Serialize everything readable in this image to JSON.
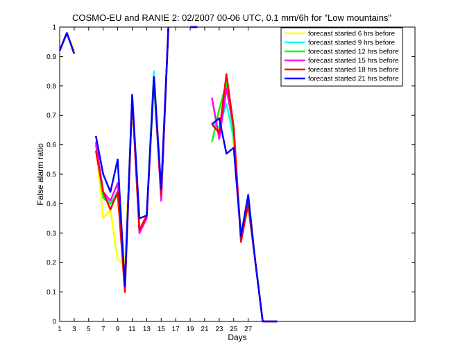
{
  "chart_data": {
    "type": "line",
    "title": "COSMO-EU and RANIE 2: 02/2007 00-06 UTC, 0.1 mm/6h for \"Low mountains\"",
    "xlabel": "Days",
    "ylabel": "False alarm ratio",
    "xlim": [
      1,
      50
    ],
    "ylim": [
      0,
      1
    ],
    "xticks": [
      1,
      3,
      5,
      7,
      9,
      11,
      13,
      15,
      17,
      19,
      21,
      23,
      25,
      27
    ],
    "yticks": [
      0,
      0.1,
      0.2,
      0.3,
      0.4,
      0.5,
      0.6,
      0.7,
      0.8,
      0.9,
      1
    ],
    "ytick_labels": [
      "0",
      "0.1",
      "0.2",
      "0.3",
      "0.4",
      "0.5",
      "0.6",
      "0.7",
      "0.8",
      "0.9",
      "1"
    ],
    "grid": false,
    "legend_position": "top-right",
    "x": [
      1,
      2,
      3,
      4,
      5,
      6,
      7,
      8,
      9,
      10,
      11,
      12,
      13,
      14,
      15,
      16,
      17,
      18,
      19,
      20,
      21,
      22,
      23,
      24,
      25,
      26,
      27,
      28,
      29,
      30,
      31
    ],
    "series": [
      {
        "name": "forecast started 6 hrs before",
        "color": "#ffff00",
        "values": [
          0.92,
          0.98,
          0.92,
          null,
          null,
          0.6,
          0.35,
          0.38,
          0.21,
          0.19,
          0.75,
          0.31,
          0.36,
          0.85,
          0.43,
          1.0,
          null,
          null,
          1.0,
          1.0,
          null,
          0.76,
          0.63,
          0.83,
          0.6,
          0.3,
          0.4,
          0.2,
          0.0,
          0.0,
          0.0
        ]
      },
      {
        "name": "forecast started 9 hrs before",
        "color": "#00ffff",
        "values": [
          0.92,
          0.98,
          0.91,
          null,
          null,
          0.6,
          0.43,
          0.4,
          0.44,
          0.12,
          0.76,
          0.31,
          0.36,
          0.85,
          0.42,
          1.0,
          null,
          null,
          1.0,
          1.0,
          null,
          0.67,
          0.66,
          0.74,
          0.62,
          0.29,
          0.39,
          0.2,
          0.0,
          0.0,
          0.0
        ]
      },
      {
        "name": "forecast started 12 hrs before",
        "color": "#00ff00",
        "values": [
          0.92,
          0.98,
          0.91,
          null,
          null,
          0.6,
          0.42,
          0.4,
          0.43,
          0.12,
          0.76,
          0.31,
          0.36,
          0.81,
          0.42,
          1.0,
          null,
          null,
          1.0,
          1.0,
          null,
          0.61,
          0.72,
          0.81,
          0.64,
          0.29,
          0.39,
          0.2,
          0.0,
          0.0,
          0.0
        ]
      },
      {
        "name": "forecast started 15 hrs before",
        "color": "#ff00ff",
        "values": [
          0.92,
          0.98,
          0.91,
          null,
          null,
          0.61,
          0.44,
          0.41,
          0.47,
          0.12,
          0.76,
          0.3,
          0.35,
          0.83,
          0.41,
          1.0,
          null,
          null,
          1.0,
          1.0,
          null,
          0.76,
          0.62,
          0.79,
          0.66,
          0.28,
          0.4,
          0.2,
          0.0,
          0.0,
          0.0
        ]
      },
      {
        "name": "forecast started 18 hrs before",
        "color": "#ff0000",
        "values": [
          0.92,
          0.98,
          0.91,
          null,
          null,
          0.58,
          0.44,
          0.38,
          0.44,
          0.1,
          0.76,
          0.31,
          0.36,
          0.83,
          0.43,
          1.0,
          null,
          null,
          1.0,
          1.0,
          null,
          0.67,
          0.64,
          0.84,
          0.66,
          0.27,
          0.4,
          0.2,
          0.0,
          0.0,
          0.0
        ]
      },
      {
        "name": "forecast started 21 hrs before",
        "color": "#0000ff",
        "values": [
          0.92,
          0.98,
          0.91,
          null,
          null,
          0.63,
          0.5,
          0.44,
          0.55,
          0.12,
          0.77,
          0.35,
          0.36,
          0.83,
          0.45,
          1.0,
          null,
          null,
          1.0,
          1.0,
          null,
          0.67,
          0.69,
          0.57,
          0.59,
          0.29,
          0.43,
          0.2,
          0.0,
          0.0,
          0.0
        ]
      }
    ]
  }
}
